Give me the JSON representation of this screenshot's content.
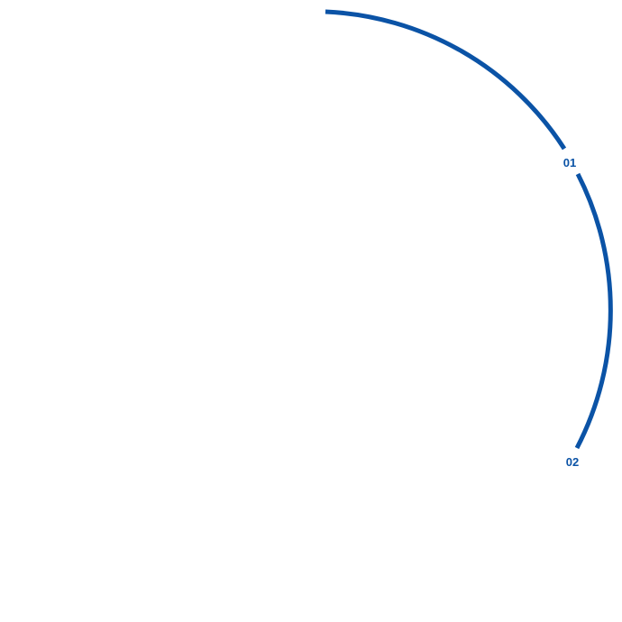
{
  "accent_color": "#0b53a6",
  "markers": [
    {
      "label": "01"
    },
    {
      "label": "02"
    }
  ]
}
